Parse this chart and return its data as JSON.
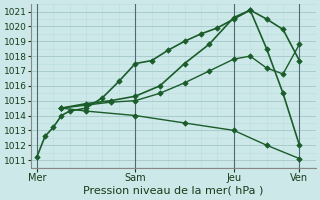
{
  "xlabel": "Pression niveau de la mer( hPa )",
  "bg_color": "#cce8e8",
  "grid_major_color": "#aacccc",
  "grid_minor_color": "#bbdddd",
  "line_color": "#1a5c2a",
  "marker_color": "#1a5c2a",
  "ylim": [
    1010.5,
    1021.5
  ],
  "yticks": [
    1011,
    1012,
    1013,
    1014,
    1015,
    1016,
    1017,
    1018,
    1019,
    1020,
    1021
  ],
  "xtick_labels": [
    "Mer",
    "Sam",
    "Jeu",
    "Ven"
  ],
  "xtick_positions": [
    0,
    36,
    72,
    96
  ],
  "xlim": [
    -2,
    102
  ],
  "vlines_x": [
    0,
    36,
    72,
    96
  ],
  "lines": [
    {
      "x": [
        0,
        3,
        6,
        9,
        12,
        18,
        24,
        30,
        36,
        42,
        48,
        54,
        60,
        66,
        72,
        78,
        84,
        90,
        96
      ],
      "y": [
        1011.2,
        1012.6,
        1013.2,
        1014.0,
        1014.3,
        1014.5,
        1015.2,
        1016.3,
        1017.5,
        1017.7,
        1018.4,
        1019.0,
        1019.5,
        1019.9,
        1020.5,
        1021.1,
        1020.5,
        1019.8,
        1017.7
      ],
      "lw": 1.2
    },
    {
      "x": [
        9,
        18,
        27,
        36,
        45,
        54,
        63,
        72,
        78,
        84,
        90,
        96
      ],
      "y": [
        1014.5,
        1014.8,
        1015.0,
        1015.3,
        1016.0,
        1017.5,
        1018.8,
        1020.6,
        1021.1,
        1018.5,
        1015.5,
        1012.0
      ],
      "lw": 1.2
    },
    {
      "x": [
        9,
        18,
        27,
        36,
        45,
        54,
        63,
        72,
        78,
        84,
        90,
        96
      ],
      "y": [
        1014.5,
        1014.7,
        1014.9,
        1015.0,
        1015.5,
        1016.2,
        1017.0,
        1017.8,
        1018.0,
        1017.2,
        1016.8,
        1018.8
      ],
      "lw": 1.0
    },
    {
      "x": [
        9,
        18,
        36,
        54,
        72,
        84,
        96
      ],
      "y": [
        1014.5,
        1014.3,
        1014.0,
        1013.5,
        1013.0,
        1012.0,
        1011.1
      ],
      "lw": 1.0
    }
  ],
  "fig_width": 3.2,
  "fig_height": 2.0,
  "dpi": 100
}
